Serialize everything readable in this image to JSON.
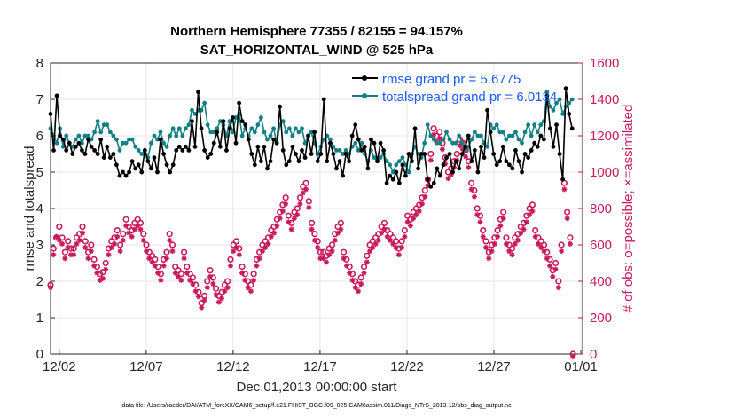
{
  "chart_data": {
    "type": "line",
    "title": "Northern Hemisphere 77355 / 82155 = 94.157%",
    "subtitle": "SAT_HORIZONTAL_WIND @ 525 hPa",
    "xlabel": "Dec.01,2013 00:00:00 start",
    "ylabel": "rmse and totalspread",
    "ylabel_right": "# of obs: o=possible; ×=assimilated",
    "footnote": "data file: /Users/raeder/DAI/ATM_forcXX/CAM6_setup/f.e21.FHIST_BGC.f09_025.CAM6assim.011/Diags_NTrS_2013-12/obs_diag_output.nc",
    "xlim": [
      0.5,
      31.1
    ],
    "ylim": [
      0,
      8
    ],
    "ylim_right": [
      0,
      1600
    ],
    "x_ticks": [
      1,
      6,
      11,
      16,
      21,
      26,
      31
    ],
    "x_tick_labels": [
      "12/02",
      "12/07",
      "12/12",
      "12/17",
      "12/22",
      "12/27",
      "01/01"
    ],
    "y_ticks": [
      0,
      1,
      2,
      3,
      4,
      5,
      6,
      7,
      8
    ],
    "y_tick_labels": [
      "0",
      "1",
      "2",
      "3",
      "4",
      "5",
      "6",
      "7",
      "8"
    ],
    "y_ticks_right": [
      0,
      200,
      400,
      600,
      800,
      1000,
      1200,
      1400,
      1600
    ],
    "y_tick_labels_right": [
      "0",
      "200",
      "400",
      "600",
      "800",
      "1000",
      "1200",
      "1400",
      "1600"
    ],
    "grid": true,
    "legend_position": "top-right",
    "series": [
      {
        "name": "rmse grand pr = 5.6775",
        "color": "#000000",
        "values": [
          6.6,
          5.6,
          7.1,
          6.0,
          5.9,
          5.6,
          5.8,
          5.5,
          5.7,
          5.8,
          5.6,
          5.5,
          5.9,
          5.7,
          5.6,
          5.5,
          5.9,
          5.4,
          5.7,
          5.4,
          5.5,
          5.2,
          4.9,
          5.0,
          4.9,
          5.0,
          5.3,
          5.1,
          5.2,
          5.0,
          5.6,
          5.3,
          5.1,
          5.4,
          5.0,
          5.9,
          5.5,
          5.2,
          5.0,
          5.2,
          5.6,
          5.7,
          5.6,
          5.7,
          5.6,
          6.4,
          5.7,
          7.2,
          6.2,
          5.6,
          5.4,
          5.5,
          5.8,
          6.1,
          5.7,
          6.4,
          5.6,
          6.2,
          6.5,
          5.8,
          6.9,
          6.4,
          6.3,
          5.9,
          5.5,
          5.2,
          5.7,
          5.3,
          5.7,
          5.1,
          5.3,
          5.9,
          5.8,
          6.8,
          5.6,
          5.2,
          5.3,
          5.7,
          5.5,
          5.3,
          5.6,
          5.4,
          6.0,
          5.5,
          6.1,
          5.3,
          5.5,
          7.0,
          5.3,
          5.8,
          5.5,
          5.1,
          5.3,
          4.9,
          5.5,
          5.3,
          6.0,
          6.3,
          5.9,
          5.6,
          5.7,
          5.1,
          5.9,
          5.8,
          5.3,
          5.8,
          5.6,
          4.7,
          4.9,
          4.8,
          5.0,
          4.7,
          5.2,
          4.9,
          5.5,
          5.3,
          6.2,
          5.1,
          5.5,
          5.5,
          4.8,
          4.6,
          4.7,
          5.1,
          4.9,
          5.2,
          5.4,
          5.5,
          5.0,
          5.3,
          5.1,
          5.5,
          5.7,
          6.0,
          5.3,
          5.6,
          5.0,
          5.7,
          5.4,
          6.7,
          6.1,
          5.5,
          5.2,
          5.3,
          5.7,
          5.3,
          5.2,
          5.1,
          5.6,
          5.3,
          5.0,
          5.5,
          5.4,
          5.6,
          5.8,
          5.7,
          6.0,
          5.9,
          7.1,
          6.2,
          5.7,
          6.3,
          5.5,
          4.8,
          7.3,
          6.6,
          6.2
        ]
      },
      {
        "name": "totalspread grand pr = 6.0134",
        "color": "#128084",
        "values": [
          6.2,
          6.0,
          5.8,
          6.2,
          5.7,
          6.0,
          5.8,
          5.7,
          5.9,
          6.0,
          5.8,
          6.0,
          6.0,
          5.9,
          6.1,
          6.4,
          6.1,
          6.3,
          6.3,
          6.1,
          6.0,
          5.9,
          5.6,
          5.8,
          5.8,
          5.9,
          5.9,
          5.7,
          5.6,
          5.5,
          5.6,
          5.4,
          5.8,
          6.0,
          5.9,
          6.1,
          5.8,
          5.7,
          6.0,
          6.2,
          6.0,
          6.2,
          6.0,
          6.2,
          6.3,
          6.7,
          6.6,
          6.7,
          6.7,
          6.9,
          6.3,
          6.1,
          6.1,
          6.2,
          6.4,
          6.3,
          6.0,
          6.4,
          6.1,
          6.5,
          6.6,
          6.0,
          6.2,
          6.0,
          6.2,
          6.1,
          6.3,
          6.5,
          6.1,
          5.9,
          6.0,
          6.2,
          5.8,
          6.3,
          6.4,
          6.1,
          6.2,
          6.0,
          6.2,
          6.1,
          6.2,
          5.8,
          6.0,
          6.1,
          5.8,
          5.5,
          5.7,
          5.9,
          6.0,
          5.9,
          5.7,
          5.6,
          5.6,
          5.5,
          5.6,
          5.5,
          5.7,
          5.8,
          5.6,
          5.8,
          5.5,
          5.3,
          5.6,
          5.4,
          5.3,
          5.4,
          5.5,
          5.3,
          5.2,
          5.0,
          5.2,
          5.3,
          5.4,
          5.2,
          5.0,
          5.5,
          5.7,
          5.5,
          5.4,
          5.8,
          6.3,
          6.0,
          5.9,
          5.8,
          5.8,
          5.9,
          6.1,
          5.9,
          5.8,
          5.8,
          6.0,
          5.8,
          5.6,
          5.7,
          5.9,
          6.1,
          6.0,
          6.0,
          5.8,
          5.7,
          6.3,
          6.2,
          6.3,
          6.1,
          6.1,
          5.9,
          6.0,
          6.0,
          6.1,
          5.9,
          5.8,
          6.1,
          6.3,
          6.0,
          6.3,
          6.1,
          6.3,
          6.4,
          7.2,
          6.8,
          6.7,
          6.9,
          7.0,
          6.6,
          6.8,
          6.9,
          7.0
        ]
      },
      {
        "name": "possible",
        "marker": "o",
        "axis": "right",
        "color": "#c8195a",
        "values": [
          380,
          580,
          640,
          700,
          640,
          560,
          620,
          580,
          580,
          640,
          660,
          700,
          620,
          560,
          600,
          520,
          480,
          440,
          450,
          500,
          580,
          620,
          640,
          680,
          600,
          660,
          740,
          700,
          680,
          720,
          740,
          720,
          660,
          600,
          560,
          540,
          520,
          480,
          440,
          520,
          560,
          660,
          600,
          480,
          460,
          440,
          560,
          480,
          440,
          420,
          380,
          340,
          280,
          320,
          400,
          460,
          420,
          360,
          320,
          340,
          380,
          400,
          520,
          600,
          620,
          580,
          480,
          440,
          400,
          380,
          440,
          520,
          560,
          600,
          620,
          640,
          680,
          700,
          740,
          780,
          820,
          860,
          760,
          720,
          780,
          800,
          860,
          920,
          940,
          840,
          720,
          660,
          620,
          560,
          560,
          540,
          580,
          600,
          660,
          700,
          720,
          560,
          520,
          480,
          440,
          400,
          380,
          420,
          480,
          540,
          600,
          620,
          640,
          660,
          700,
          720,
          680,
          660,
          640,
          620,
          580,
          620,
          680,
          760,
          740,
          780,
          800,
          820,
          860,
          900,
          960,
          1100,
          1240,
          1200,
          1220,
          1160,
          1080,
          1000,
          1020,
          1060,
          1100,
          1180,
          1160,
          1120,
          1060,
          940,
          900,
          800,
          760,
          680,
          620,
          560,
          600,
          640,
          680,
          740,
          780,
          640,
          600,
          580,
          640,
          660,
          700,
          720,
          760,
          800,
          820,
          680,
          640,
          620,
          600,
          560,
          520,
          460,
          500,
          400,
          600,
          940,
          780,
          640,
          0
        ]
      },
      {
        "name": "assimilated",
        "marker": "x",
        "axis": "right",
        "color": "#c8195a",
        "values": [
          380,
          560,
          660,
          640,
          620,
          540,
          600,
          560,
          560,
          620,
          640,
          680,
          600,
          540,
          580,
          500,
          460,
          420,
          430,
          480,
          560,
          600,
          620,
          660,
          580,
          640,
          720,
          680,
          660,
          700,
          720,
          700,
          640,
          580,
          540,
          520,
          500,
          460,
          420,
          500,
          540,
          640,
          580,
          460,
          440,
          420,
          540,
          460,
          420,
          400,
          360,
          330,
          270,
          310,
          380,
          440,
          400,
          340,
          300,
          320,
          360,
          380,
          500,
          580,
          600,
          560,
          460,
          420,
          380,
          360,
          420,
          500,
          540,
          580,
          600,
          620,
          660,
          680,
          720,
          760,
          800,
          840,
          740,
          700,
          760,
          780,
          840,
          900,
          920,
          820,
          700,
          640,
          600,
          540,
          540,
          520,
          560,
          580,
          640,
          680,
          700,
          540,
          500,
          460,
          420,
          380,
          360,
          400,
          460,
          520,
          580,
          600,
          620,
          640,
          680,
          700,
          660,
          640,
          620,
          600,
          560,
          600,
          660,
          740,
          720,
          760,
          780,
          800,
          840,
          880,
          940,
          1080,
          1220,
          1180,
          1200,
          1140,
          1060,
          980,
          1000,
          1040,
          1080,
          1160,
          1140,
          1100,
          1040,
          920,
          880,
          780,
          740,
          660,
          600,
          540,
          580,
          620,
          660,
          720,
          760,
          620,
          580,
          560,
          620,
          640,
          680,
          700,
          740,
          780,
          800,
          660,
          620,
          600,
          580,
          540,
          500,
          440,
          480,
          380,
          580,
          920,
          760,
          620,
          0
        ]
      }
    ]
  }
}
